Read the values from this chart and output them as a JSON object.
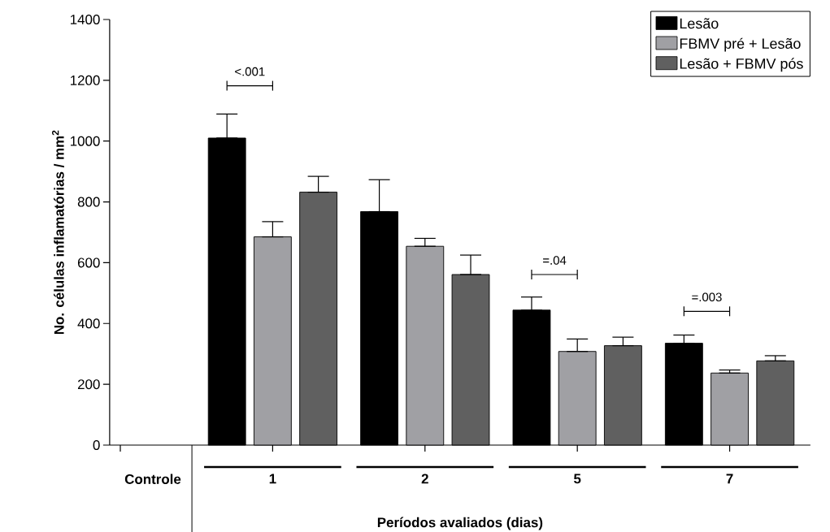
{
  "chart_data": {
    "type": "bar",
    "xlabel": "Períodos avaliados (dias)",
    "ylabel": "No. células inflamatórias / mm$^{2}$",
    "categories": [
      "Controle",
      "1",
      "2",
      "5",
      "7"
    ],
    "series": [
      {
        "name": "Lesão",
        "color": "#000000",
        "values": [
          null,
          1010,
          768,
          444,
          335
        ],
        "errors": [
          null,
          [
            1010,
            1089
          ],
          [
            768,
            873
          ],
          [
            444,
            487
          ],
          [
            335,
            362
          ]
        ]
      },
      {
        "name": "FBMV pré + Lesão",
        "color": "#a0a0a4",
        "values": [
          null,
          685,
          654,
          308,
          237
        ],
        "errors": [
          null,
          [
            685,
            735
          ],
          [
            654,
            680
          ],
          [
            308,
            349
          ],
          [
            237,
            247
          ]
        ]
      },
      {
        "name": "Lesão + FBMV pós",
        "color": "#606060",
        "values": [
          null,
          832,
          561,
          327,
          277
        ],
        "errors": [
          null,
          [
            832,
            884
          ],
          [
            561,
            625
          ],
          [
            327,
            355
          ],
          [
            277,
            294
          ]
        ]
      }
    ],
    "ylim": [
      0,
      1400
    ],
    "yticks": [
      0,
      200,
      400,
      600,
      800,
      1000,
      1200,
      1400
    ],
    "legend": "top right",
    "annotations": [
      "<.001",
      "=.04",
      "=.003"
    ]
  }
}
